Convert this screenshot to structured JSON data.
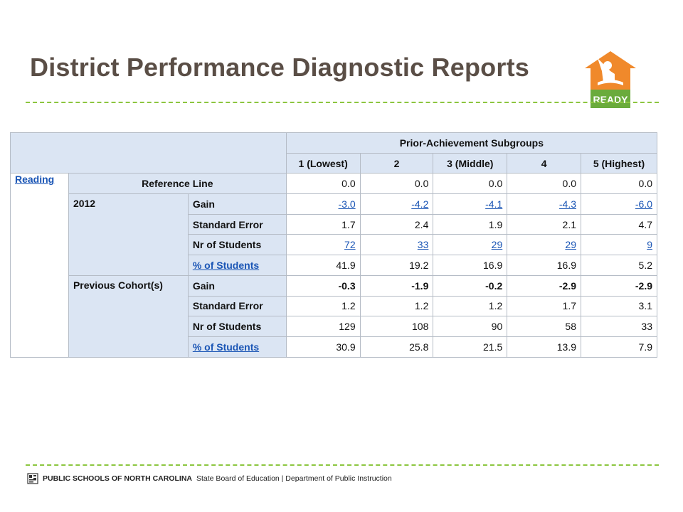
{
  "slide": {
    "title": "District Performance Diagnostic Reports"
  },
  "logo": {
    "text": "READY",
    "colors": {
      "house": "#f0892b",
      "banner": "#6aab3c"
    }
  },
  "table": {
    "group_header": "Prior-Achievement Subgroups",
    "columns": [
      "1 (Lowest)",
      "2",
      "3 (Middle)",
      "4",
      "5 (Highest)"
    ],
    "subject": "Reading",
    "reference_line": {
      "label": "Reference Line",
      "values": [
        "0.0",
        "0.0",
        "0.0",
        "0.0",
        "0.0"
      ]
    },
    "groups": [
      {
        "label": "2012",
        "rows": [
          {
            "measure": "Gain",
            "values": [
              "-3.0",
              "-4.2",
              "-4.1",
              "-4.3",
              "-6.0"
            ]
          },
          {
            "measure": "Standard Error",
            "values": [
              "1.7",
              "2.4",
              "1.9",
              "2.1",
              "4.7"
            ]
          },
          {
            "measure": "Nr of Students",
            "values": [
              "72",
              "33",
              "29",
              "29",
              "9"
            ]
          },
          {
            "measure": "% of Students",
            "values": [
              "41.9",
              "19.2",
              "16.9",
              "16.9",
              "5.2"
            ]
          }
        ]
      },
      {
        "label": "Previous Cohort(s)",
        "rows": [
          {
            "measure": "Gain",
            "values": [
              "-0.3",
              "-1.9",
              "-0.2",
              "-2.9",
              "-2.9"
            ]
          },
          {
            "measure": "Standard Error",
            "values": [
              "1.2",
              "1.2",
              "1.2",
              "1.7",
              "3.1"
            ]
          },
          {
            "measure": "Nr of Students",
            "values": [
              "129",
              "108",
              "90",
              "58",
              "33"
            ]
          },
          {
            "measure": "% of Students",
            "values": [
              "30.9",
              "25.8",
              "21.5",
              "13.9",
              "7.9"
            ]
          }
        ]
      }
    ]
  },
  "footer": {
    "org": "PUBLIC SCHOOLS OF NORTH CAROLINA",
    "rest": "State Board of Education | Department of Public Instruction"
  },
  "colors": {
    "title": "#5a4e46",
    "header_bg": "#dbe5f3",
    "link": "#1a55b5",
    "dash": "#8cc63f"
  }
}
